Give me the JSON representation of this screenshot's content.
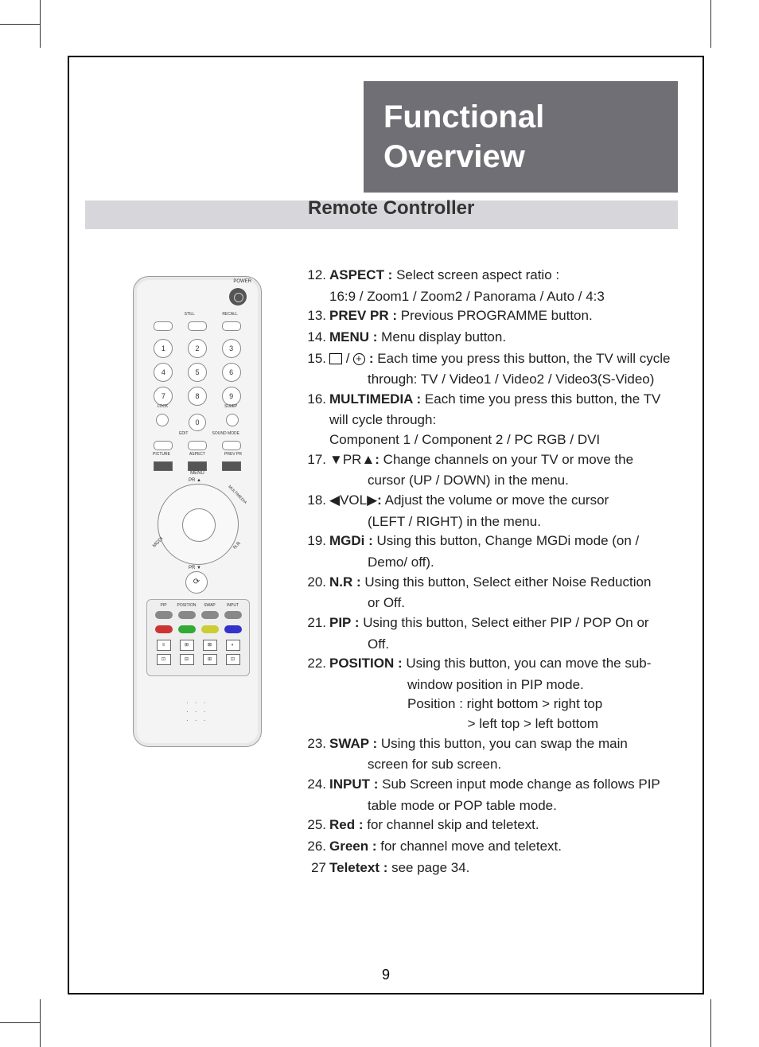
{
  "page_number": "9",
  "title_line1": "Functional",
  "title_line2": "Overview",
  "subtitle": "Remote Controller",
  "remote": {
    "power": "POWER",
    "row1": [
      "",
      "STILL",
      "RECALL"
    ],
    "numbers": [
      [
        "1",
        "2",
        "3"
      ],
      [
        "4",
        "5",
        "6"
      ],
      [
        "7",
        "8",
        "9"
      ]
    ],
    "row_lock": [
      "LOCK",
      "0",
      "SLEEP"
    ],
    "row_edit": [
      "",
      "EDIT",
      "SOUND MODE"
    ],
    "row_pic": [
      "PICTURE",
      "ASPECT",
      "PREV PR"
    ],
    "menu": "MENU",
    "pr_up": "PR ▲",
    "pr_dn": "PR ▼",
    "diag": [
      "MGDI",
      "MULTIMEDIA",
      "N.R"
    ],
    "pip_labels": [
      "PIP",
      "POSITION",
      "SWAP",
      "INPUT"
    ]
  },
  "items": [
    {
      "n": "12.",
      "bold": "ASPECT :",
      "text": " Select screen aspect ratio :",
      "cont": [
        "16:9 / Zoom1 / Zoom2 / Panorama / Auto / 4:3"
      ],
      "cont_class": "indent1"
    },
    {
      "n": "13.",
      "bold": "PREV PR :",
      "text": " Previous PROGRAMME button."
    },
    {
      "n": "14.",
      "bold": "MENU :",
      "text": " Menu display button."
    },
    {
      "n": "15.",
      "icons": true,
      "text": " Each time you press this button, the TV will cycle",
      "cont": [
        "through: TV / Video1 / Video2 / Video3(S-Video)"
      ],
      "cont_class": "indent2"
    },
    {
      "n": "16.",
      "bold": "MULTIMEDIA :",
      "text": " Each time you press this button, the TV",
      "cont": [
        "will cycle through:",
        "Component 1 / Component 2 / PC RGB / DVI"
      ],
      "cont_class": "indent1"
    },
    {
      "n": "17.",
      "pre": "▼PR▲",
      "bold": ":",
      "text": " Change channels on your TV or move the",
      "cont": [
        "cursor (UP / DOWN) in the menu."
      ],
      "cont_class": "indent2"
    },
    {
      "n": "18.",
      "pre": "◀VOL▶",
      "bold": ":",
      "text": " Adjust the volume or move the cursor",
      "cont": [
        "(LEFT / RIGHT) in the menu."
      ],
      "cont_class": "indent2"
    },
    {
      "n": "19.",
      "bold": "MGDi :",
      "text": " Using this button, Change MGDi mode (on /",
      "cont": [
        "Demo/ off)."
      ],
      "cont_class": "indent2"
    },
    {
      "n": "20.",
      "bold": "N.R :",
      "text": " Using this button, Select either Noise Reduction",
      "cont": [
        "or Off."
      ],
      "cont_class": "indent2"
    },
    {
      "n": "21.",
      "bold": "PIP :",
      "text": " Using this button, Select either PIP / POP On or",
      "cont": [
        "Off."
      ],
      "cont_class": "indent2"
    },
    {
      "n": "22.",
      "bold": "POSITION :",
      "text": " Using this button, you can move the sub-",
      "cont": [
        "window position in PIP mode.",
        "Position : right bottom > right top",
        "                > left top > left bottom"
      ],
      "cont_class": "indent3"
    },
    {
      "n": "23.",
      "bold": "SWAP :",
      "text": " Using this button, you can swap the main",
      "cont": [
        "screen for sub screen."
      ],
      "cont_class": "indent2"
    },
    {
      "n": "24.",
      "bold": "INPUT :",
      "text": " Sub Screen input mode change as follows PIP",
      "cont": [
        "table mode or POP table mode."
      ],
      "cont_class": "indent2"
    },
    {
      "n": "25.",
      "bold": "Red :",
      "text": " for channel skip and teletext."
    },
    {
      "n": "26.",
      "bold": "Green :",
      "text": " for channel move and teletext."
    },
    {
      "n": "27",
      "bold": " Teletext :",
      "text": " see page 34."
    }
  ]
}
